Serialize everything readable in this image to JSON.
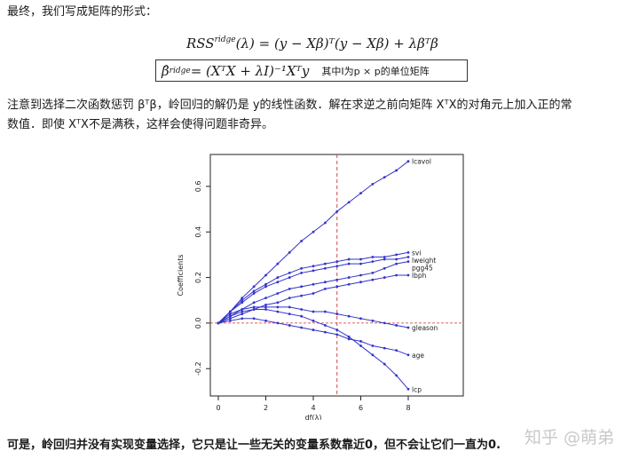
{
  "intro": "最终，我们写成矩阵的形式：",
  "eq1": "RSS",
  "eq1_sup": "ridge",
  "eq1_rest": "(λ) = (y − Xβ)ᵀ(y − Xβ) + λβᵀβ",
  "eq2": "β̂",
  "eq2_sup": "ridge",
  "eq2_rest": "= (XᵀX + λI)⁻¹Xᵀy",
  "eq2_note": "其中I为p × p的单位矩阵",
  "para_line1": "注意到选择二次函数惩罚 βᵀβ，岭回归的解仍是 y的线性函数．解在求逆之前向矩阵 XᵀX的对角元上加入正的常",
  "para_line2": "数值．即使 XᵀX不是满秩，这样会使得问题非奇异。",
  "footer": "可是，岭回归并没有实现变量选择，它只是让一些无关的变量系数靠近0，但不会让它们一直为0.",
  "watermark": "知乎 @萌弟",
  "chart_data": {
    "type": "line",
    "xlabel": "df(λ)",
    "ylabel": "Coefficients",
    "xlim": [
      0,
      8
    ],
    "ylim": [
      -0.32,
      0.74
    ],
    "xticks": [
      0,
      2,
      4,
      6,
      8
    ],
    "yticks": [
      -0.2,
      0.0,
      0.2,
      0.4,
      0.6
    ],
    "ytick_labels": [
      "-0.2",
      "0.0",
      "0.2",
      "0.4",
      "0.6"
    ],
    "vline_x": 5.0,
    "hline_y": 0.0,
    "line_color": "#3333cc",
    "ref_color": "#cc3333",
    "x": [
      0,
      0.5,
      1,
      1.5,
      2,
      2.5,
      3,
      3.5,
      4,
      4.5,
      5,
      5.5,
      6,
      6.5,
      7,
      7.5,
      8
    ],
    "series": [
      {
        "name": "lcavol",
        "values": [
          0,
          0.05,
          0.11,
          0.16,
          0.21,
          0.26,
          0.31,
          0.36,
          0.4,
          0.44,
          0.49,
          0.53,
          0.57,
          0.61,
          0.64,
          0.67,
          0.71
        ]
      },
      {
        "name": "svi",
        "values": [
          0,
          0.05,
          0.1,
          0.14,
          0.17,
          0.2,
          0.22,
          0.24,
          0.25,
          0.26,
          0.27,
          0.28,
          0.28,
          0.29,
          0.29,
          0.3,
          0.31
        ]
      },
      {
        "name": "lweight",
        "values": [
          0,
          0.05,
          0.09,
          0.13,
          0.16,
          0.18,
          0.2,
          0.22,
          0.23,
          0.24,
          0.25,
          0.26,
          0.26,
          0.27,
          0.28,
          0.28,
          0.29
        ]
      },
      {
        "name": "pgg45",
        "values": [
          0,
          0.03,
          0.06,
          0.09,
          0.11,
          0.13,
          0.15,
          0.16,
          0.17,
          0.18,
          0.19,
          0.2,
          0.21,
          0.22,
          0.24,
          0.26,
          0.27
        ]
      },
      {
        "name": "lbph",
        "values": [
          0,
          0.02,
          0.04,
          0.06,
          0.08,
          0.09,
          0.11,
          0.12,
          0.13,
          0.15,
          0.16,
          0.17,
          0.18,
          0.19,
          0.2,
          0.21,
          0.21
        ]
      },
      {
        "name": "gleason",
        "values": [
          0,
          0.04,
          0.06,
          0.07,
          0.07,
          0.07,
          0.07,
          0.06,
          0.05,
          0.05,
          0.04,
          0.03,
          0.02,
          0.01,
          0.0,
          -0.01,
          -0.02
        ]
      },
      {
        "name": "age",
        "values": [
          0,
          0.01,
          0.02,
          0.02,
          0.01,
          0.0,
          -0.01,
          -0.02,
          -0.03,
          -0.04,
          -0.05,
          -0.07,
          -0.08,
          -0.1,
          -0.11,
          -0.12,
          -0.14
        ]
      },
      {
        "name": "lcp",
        "values": [
          0,
          0.03,
          0.05,
          0.06,
          0.06,
          0.05,
          0.04,
          0.03,
          0.01,
          -0.01,
          -0.03,
          -0.06,
          -0.1,
          -0.14,
          -0.18,
          -0.23,
          -0.29
        ]
      }
    ]
  }
}
